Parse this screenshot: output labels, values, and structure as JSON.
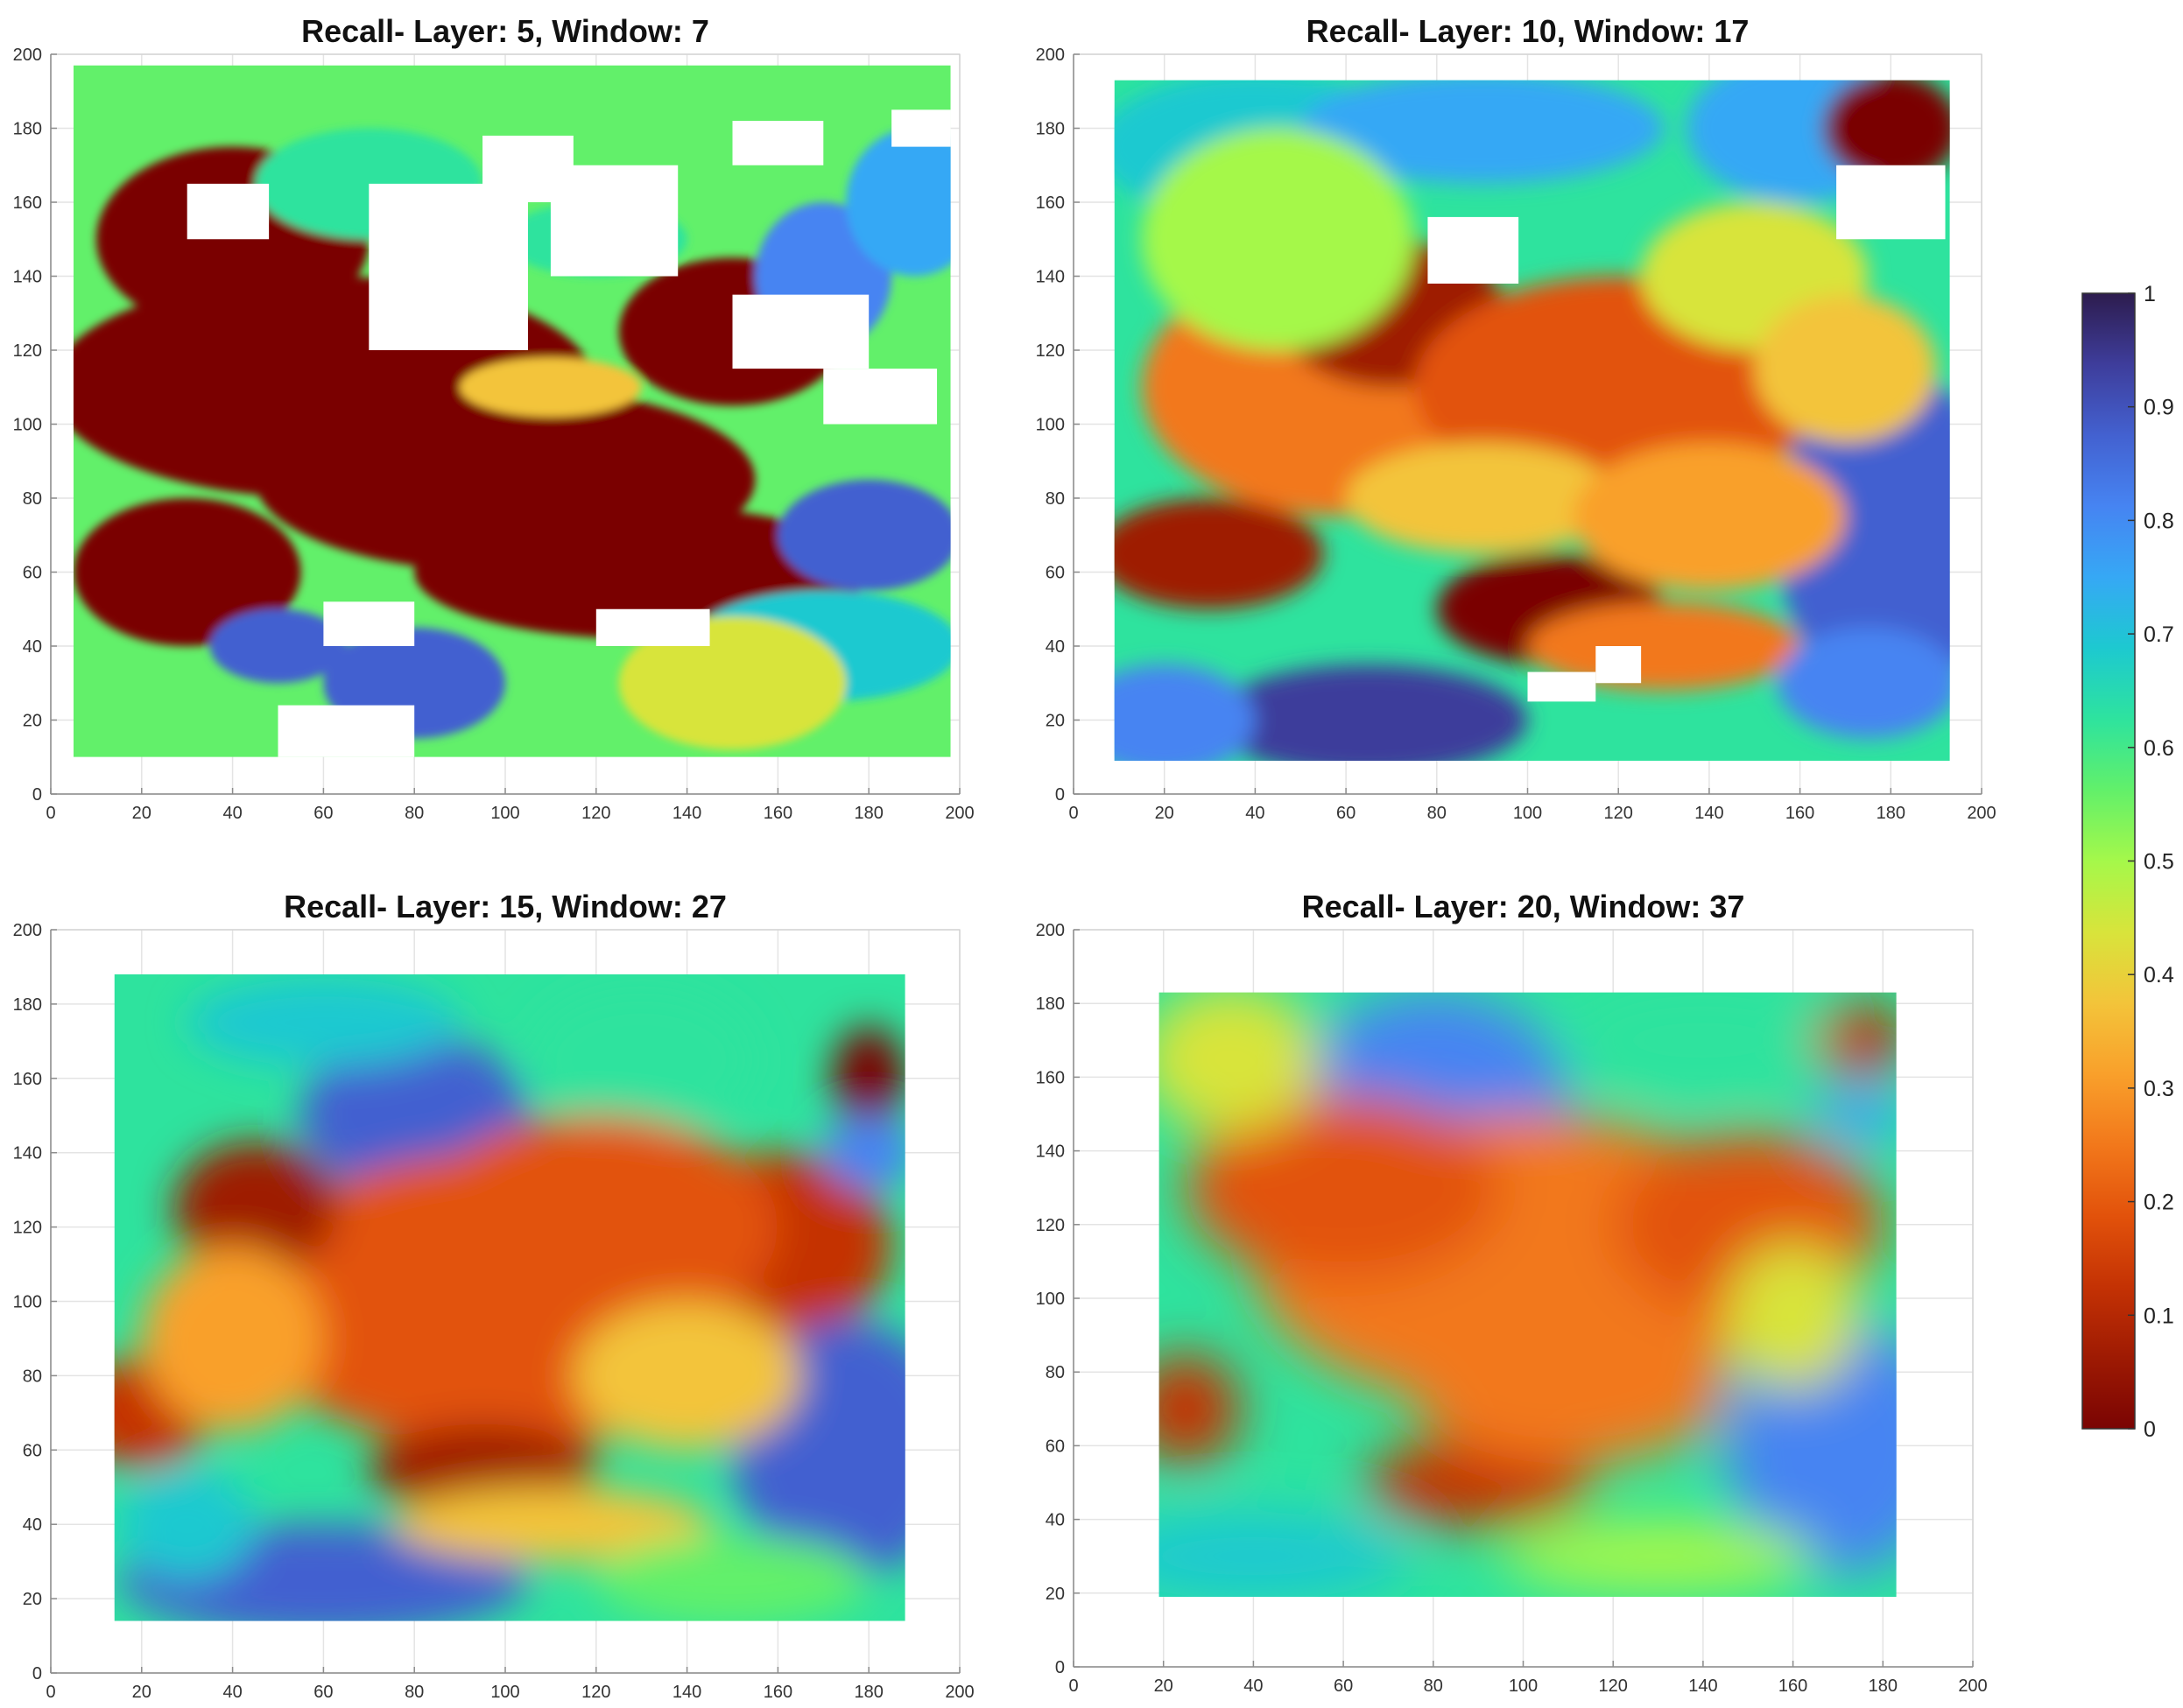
{
  "colorbar": {
    "ticks": [
      "1",
      "0.9",
      "0.8",
      "0.7",
      "0.6",
      "0.5",
      "0.4",
      "0.3",
      "0.2",
      "0.1",
      "0"
    ],
    "colors": [
      "#7a0403",
      "#9e1a03",
      "#c43204",
      "#e2520b",
      "#f2781b",
      "#f9a02b",
      "#f3c43a",
      "#d8e43b",
      "#a5f84a",
      "#62f06a",
      "#2ee39e",
      "#1dc9d0",
      "#36a8f5",
      "#4684f2",
      "#4361d0",
      "#3e3d9b",
      "#2d1c4e"
    ]
  },
  "chart_data": [
    {
      "type": "heatmap",
      "title": "Recall- Layer: 5, Window: 7",
      "xlim": [
        0,
        200
      ],
      "ylim": [
        0,
        200
      ],
      "xticks": [
        "0",
        "20",
        "40",
        "60",
        "80",
        "100",
        "120",
        "140",
        "160",
        "180",
        "200"
      ],
      "yticks": [
        "0",
        "20",
        "40",
        "60",
        "80",
        "100",
        "120",
        "140",
        "160",
        "180",
        "200"
      ],
      "colorbar_range": [
        0,
        1
      ],
      "data_extent": {
        "x": [
          5,
          198
        ],
        "y": [
          10,
          197
        ]
      },
      "grid": true
    },
    {
      "type": "heatmap",
      "title": "Recall- Layer: 10, Window: 17",
      "xlim": [
        0,
        200
      ],
      "ylim": [
        0,
        200
      ],
      "xticks": [
        "0",
        "20",
        "40",
        "60",
        "80",
        "100",
        "120",
        "140",
        "160",
        "180",
        "200"
      ],
      "yticks": [
        "0",
        "20",
        "40",
        "60",
        "80",
        "100",
        "120",
        "140",
        "160",
        "180",
        "200"
      ],
      "colorbar_range": [
        0,
        1
      ],
      "data_extent": {
        "x": [
          9,
          193
        ],
        "y": [
          9,
          193
        ]
      },
      "grid": true
    },
    {
      "type": "heatmap",
      "title": "Recall- Layer: 15, Window: 27",
      "xlim": [
        0,
        200
      ],
      "ylim": [
        0,
        200
      ],
      "xticks": [
        "0",
        "20",
        "40",
        "60",
        "80",
        "100",
        "120",
        "140",
        "160",
        "180",
        "200"
      ],
      "yticks": [
        "0",
        "20",
        "40",
        "60",
        "80",
        "100",
        "120",
        "140",
        "160",
        "180",
        "200"
      ],
      "colorbar_range": [
        0,
        1
      ],
      "data_extent": {
        "x": [
          14,
          188
        ],
        "y": [
          14,
          188
        ]
      },
      "grid": true
    },
    {
      "type": "heatmap",
      "title": "Recall- Layer: 20, Window: 37",
      "xlim": [
        0,
        200
      ],
      "ylim": [
        0,
        200
      ],
      "xticks": [
        "0",
        "20",
        "40",
        "60",
        "80",
        "100",
        "120",
        "140",
        "160",
        "180",
        "200"
      ],
      "yticks": [
        "0",
        "20",
        "40",
        "60",
        "80",
        "100",
        "120",
        "140",
        "160",
        "180",
        "200"
      ],
      "colorbar_range": [
        0,
        1
      ],
      "data_extent": {
        "x": [
          19,
          183
        ],
        "y": [
          19,
          183
        ]
      },
      "grid": true
    }
  ]
}
